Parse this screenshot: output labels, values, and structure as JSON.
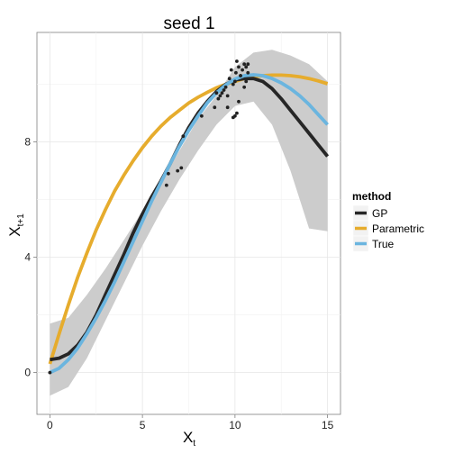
{
  "chart_data": {
    "type": "line",
    "title": "seed 1",
    "xlabel": {
      "main": "X",
      "sub": "t"
    },
    "ylabel": {
      "main": "X",
      "sub": "t+1"
    },
    "xlim": [
      -0.7,
      15.7
    ],
    "ylim": [
      -1.45,
      11.8
    ],
    "x_ticks": [
      0,
      5,
      10,
      15
    ],
    "y_ticks": [
      0,
      4,
      8
    ],
    "grid": true,
    "legend": {
      "title": "method",
      "position": "right"
    },
    "series": [
      {
        "name": "GP",
        "color": "#262626",
        "x": [
          0,
          0.5,
          1,
          1.5,
          2,
          2.5,
          3,
          3.5,
          4,
          4.5,
          5,
          5.5,
          6,
          6.5,
          7,
          7.5,
          8,
          8.5,
          9,
          9.5,
          10,
          10.5,
          11,
          11.5,
          12,
          12.5,
          13,
          13.5,
          14,
          14.5,
          15
        ],
        "y": [
          0.45,
          0.5,
          0.65,
          0.95,
          1.4,
          2.0,
          2.7,
          3.4,
          4.1,
          4.85,
          5.5,
          6.1,
          6.65,
          7.25,
          7.9,
          8.5,
          9.0,
          9.4,
          9.75,
          10.0,
          10.15,
          10.2,
          10.2,
          10.1,
          9.85,
          9.5,
          9.1,
          8.7,
          8.3,
          7.9,
          7.5
        ]
      },
      {
        "name": "Parametric",
        "color": "#E6AC2D",
        "x": [
          0,
          0.5,
          1,
          1.5,
          2,
          2.5,
          3,
          3.5,
          4,
          4.5,
          5,
          5.5,
          6,
          6.5,
          7,
          7.5,
          8,
          8.5,
          9,
          9.5,
          10,
          10.5,
          11,
          11.5,
          12,
          12.5,
          13,
          13.5,
          14,
          14.5,
          15
        ],
        "y": [
          0.3,
          1.35,
          2.35,
          3.3,
          4.15,
          4.95,
          5.65,
          6.3,
          6.85,
          7.35,
          7.8,
          8.2,
          8.55,
          8.85,
          9.1,
          9.35,
          9.55,
          9.72,
          9.88,
          10.0,
          10.1,
          10.2,
          10.26,
          10.3,
          10.32,
          10.32,
          10.3,
          10.26,
          10.2,
          10.12,
          10.02
        ]
      },
      {
        "name": "True",
        "color": "#6BB5DF",
        "x": [
          0,
          0.5,
          1,
          1.5,
          2,
          2.5,
          3,
          3.5,
          4,
          4.5,
          5,
          5.5,
          6,
          6.5,
          7,
          7.5,
          8,
          8.5,
          9,
          9.5,
          10,
          10.5,
          11,
          11.5,
          12,
          12.5,
          13,
          13.5,
          14,
          14.5,
          15
        ],
        "y": [
          0,
          0.15,
          0.45,
          0.85,
          1.35,
          1.9,
          2.5,
          3.15,
          3.85,
          4.55,
          5.25,
          5.95,
          6.6,
          7.25,
          7.85,
          8.4,
          8.9,
          9.35,
          9.7,
          9.98,
          10.18,
          10.3,
          10.33,
          10.3,
          10.2,
          10.05,
          9.85,
          9.6,
          9.3,
          8.95,
          8.6
        ]
      }
    ],
    "confidence_band": {
      "label": "GP",
      "color": "#cccccc",
      "x": [
        0,
        1,
        2,
        3,
        4,
        5,
        6,
        7,
        8,
        9,
        10,
        11,
        12,
        13,
        14,
        15
      ],
      "lower": [
        -0.8,
        -0.5,
        0.5,
        1.8,
        3.1,
        4.4,
        5.6,
        6.7,
        7.7,
        8.6,
        9.25,
        9.4,
        8.6,
        7.0,
        5.0,
        4.9
      ],
      "upper": [
        1.7,
        1.9,
        2.7,
        3.6,
        4.6,
        5.6,
        6.6,
        7.7,
        8.8,
        9.6,
        10.6,
        11.1,
        11.2,
        11.0,
        10.7,
        10.1
      ]
    },
    "observations": {
      "color": "#222222",
      "x": [
        0,
        6.3,
        6.4,
        6.9,
        7.1,
        7.2,
        8.2,
        8.9,
        9.0,
        9.1,
        9.3,
        9.4,
        9.5,
        9.6,
        9.7,
        9.8,
        9.9,
        10.0,
        10.05,
        10.1,
        10.2,
        10.3,
        10.4,
        10.5,
        10.6,
        10.7,
        10.0,
        9.9,
        10.1,
        10.5,
        9.2,
        9.6,
        10.6,
        10.3,
        10.7,
        10.2
      ],
      "y": [
        0,
        6.5,
        6.9,
        7.0,
        7.1,
        8.2,
        8.9,
        9.2,
        9.7,
        9.5,
        9.7,
        9.8,
        9.9,
        9.6,
        10.2,
        10.5,
        10.0,
        10.1,
        10.4,
        10.8,
        10.6,
        10.3,
        10.5,
        10.7,
        10.6,
        10.7,
        8.9,
        8.85,
        9.0,
        9.9,
        9.6,
        9.2,
        10.1,
        10.3,
        10.4,
        9.4
      ]
    }
  }
}
